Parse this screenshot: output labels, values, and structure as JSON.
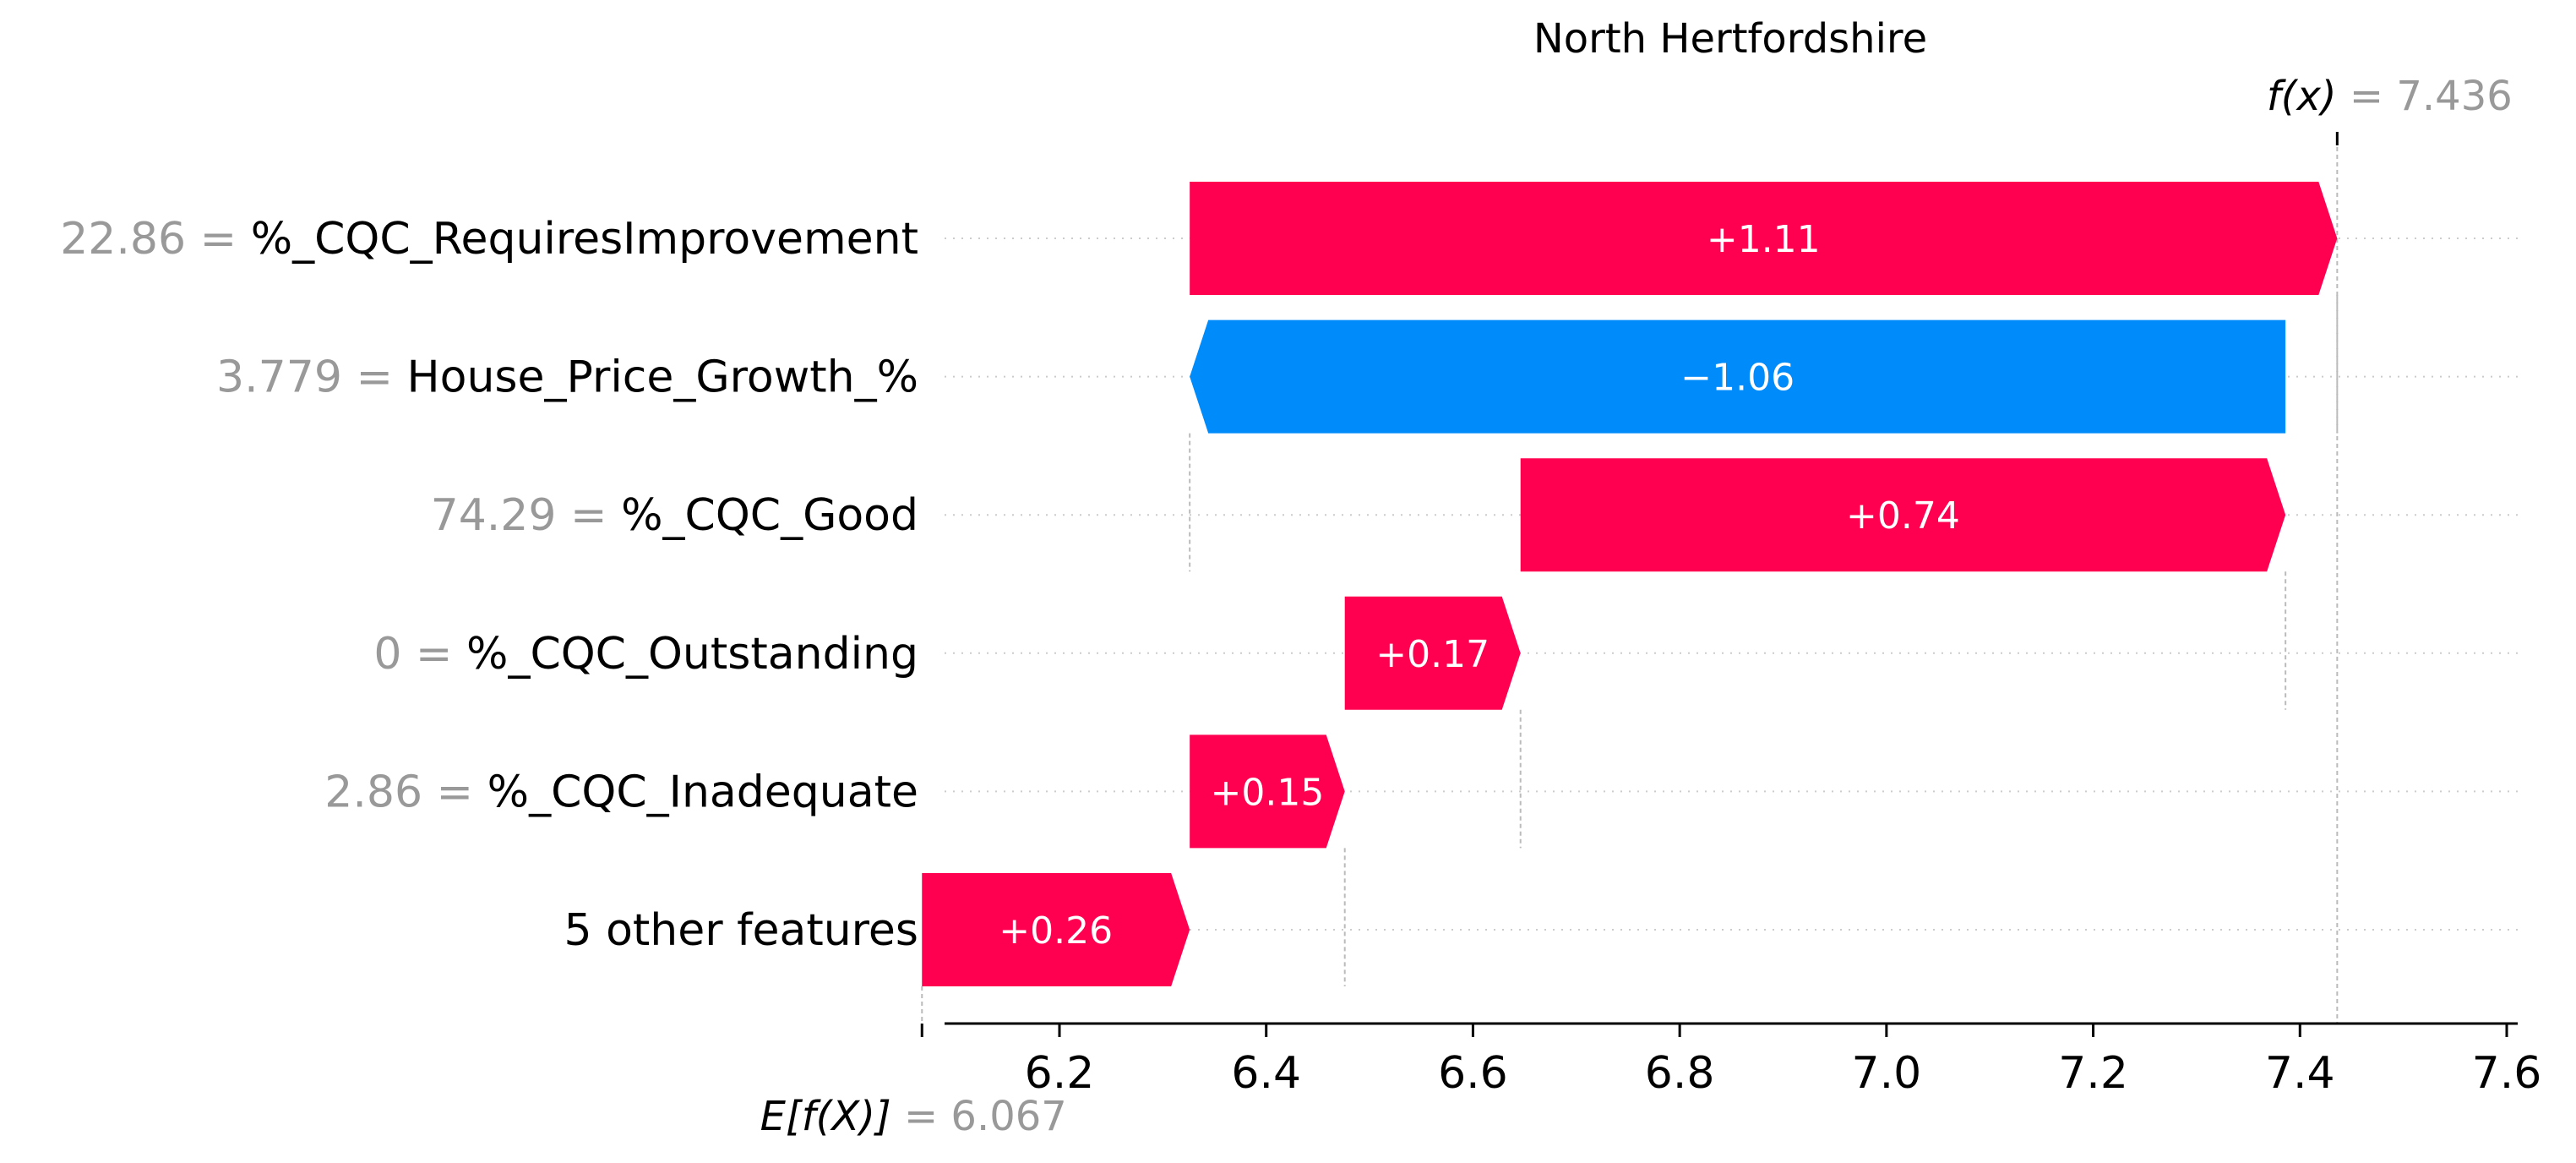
{
  "chart_data": {
    "type": "waterfall",
    "title": "North Hertfordshire",
    "base_value": 6.067,
    "base_label_prefix": "E[f(X)]",
    "base_label_value": "6.067",
    "output_value": 7.436,
    "output_label_prefix": "f(x)",
    "output_label_value": "7.436",
    "xlim": [
      6.0,
      7.6
    ],
    "xticks": [
      6.2,
      6.4,
      6.6,
      6.8,
      7.0,
      7.2,
      7.4,
      7.6
    ],
    "xtick_labels": [
      "6.2",
      "6.4",
      "6.6",
      "6.8",
      "7.0",
      "7.2",
      "7.4",
      "7.6"
    ],
    "features": [
      {
        "value": "22.86",
        "name": "%_CQC_RequiresImprovement",
        "start": 6.326,
        "end": 7.436,
        "label": "+1.11"
      },
      {
        "value": "3.779",
        "name": "House_Price_Growth_%",
        "start": 7.386,
        "end": 6.326,
        "label": "−1.06"
      },
      {
        "value": "74.29",
        "name": "%_CQC_Good",
        "start": 6.646,
        "end": 7.386,
        "label": "+0.74"
      },
      {
        "value": "0",
        "name": "%_CQC_Outstanding",
        "start": 6.476,
        "end": 6.646,
        "label": "+0.17"
      },
      {
        "value": "2.86",
        "name": "%_CQC_Inadequate",
        "start": 6.326,
        "end": 6.476,
        "label": "+0.15"
      },
      {
        "value": "",
        "name": "5 other features",
        "start": 6.067,
        "end": 6.326,
        "label": "+0.26"
      }
    ],
    "colors": {
      "positive": "#ff0051",
      "negative": "#008bfb",
      "value_text": "#999999",
      "name_text": "#000000",
      "grid": "#cccccc",
      "guide": "#bbbbbb"
    }
  }
}
